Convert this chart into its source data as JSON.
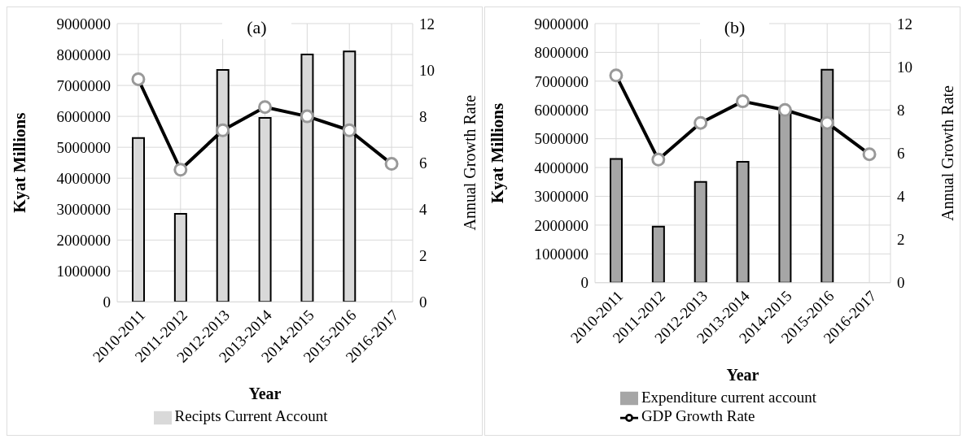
{
  "chart_data": [
    {
      "type": "bar",
      "title": "(a)",
      "xlabel": "Year",
      "ylabel": "Kyat Millions",
      "y2label": "Annual Growth  Rate",
      "categories": [
        "2010-2011",
        "2011-2012",
        "2012-2013",
        "2013-2014",
        "2014-2015",
        "2015-2016",
        "2016-2017"
      ],
      "series": [
        {
          "name": "Recipts Current Account",
          "color": "#d9d9d9",
          "values": [
            5300000,
            2850000,
            7500000,
            5950000,
            8000000,
            8100000,
            null
          ]
        },
        {
          "type": "line",
          "axis": "y2",
          "color": "#000000",
          "values": [
            9.6,
            5.7,
            7.4,
            8.4,
            8.0,
            7.4,
            5.95
          ]
        }
      ],
      "ylim": [
        0,
        9000000
      ],
      "yticks": [
        0,
        1000000,
        2000000,
        3000000,
        4000000,
        5000000,
        6000000,
        7000000,
        8000000,
        9000000
      ],
      "y2lim": [
        0,
        12
      ],
      "y2ticks": [
        0,
        2,
        4,
        6,
        8,
        10,
        12
      ],
      "grid": true,
      "legend": "bottom",
      "marker": "circle",
      "line_style": "solid"
    },
    {
      "type": "bar",
      "title": "(b)",
      "xlabel": "Year",
      "ylabel": "Kyat Millions",
      "y2label": "Annual Growth  Rate",
      "categories": [
        "2010-2011",
        "2011-2012",
        "2012-2013",
        "2013-2014",
        "2014-2015",
        "2015-2016",
        "2016-2017"
      ],
      "series": [
        {
          "name": "Expenditure current account",
          "color": "#a6a6a6",
          "values": [
            4300000,
            1950000,
            3500000,
            4200000,
            6000000,
            7400000,
            null
          ]
        },
        {
          "name": "GDP Growth Rate",
          "type": "line",
          "axis": "y2",
          "color": "#000000",
          "values": [
            9.6,
            5.7,
            7.4,
            8.4,
            8.0,
            7.4,
            5.95
          ]
        }
      ],
      "ylim": [
        0,
        9000000
      ],
      "yticks": [
        0,
        1000000,
        2000000,
        3000000,
        4000000,
        5000000,
        6000000,
        7000000,
        8000000,
        9000000
      ],
      "y2lim": [
        0,
        12
      ],
      "y2ticks": [
        0,
        2,
        4,
        6,
        8,
        10,
        12
      ],
      "grid": true,
      "legend": "bottom",
      "marker": "circle",
      "line_style": "solid"
    }
  ]
}
